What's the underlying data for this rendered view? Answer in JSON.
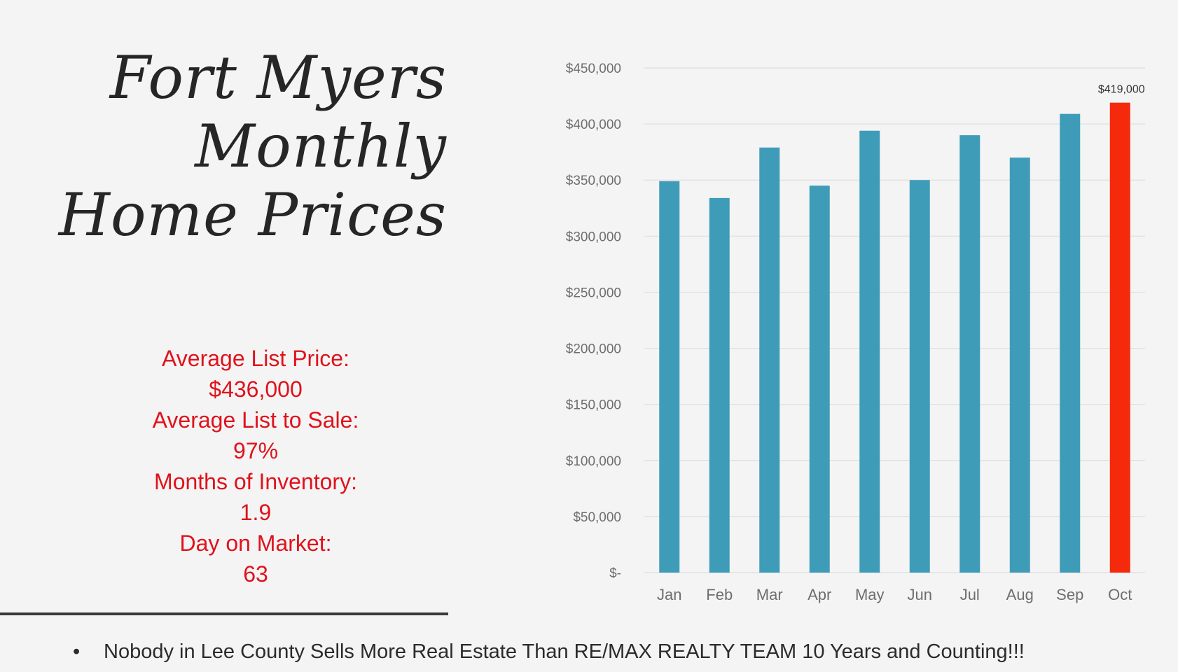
{
  "title_lines": [
    "Fort Myers",
    "Monthly",
    "Home Prices"
  ],
  "stats": [
    {
      "label": "Average List Price:",
      "value": "$436,000"
    },
    {
      "label": "Average List to Sale:",
      "value": "97%"
    },
    {
      "label": "Months of Inventory:",
      "value": "1.9"
    },
    {
      "label": "Day on Market:",
      "value": "63"
    }
  ],
  "footer": {
    "bullet": "•",
    "text": "Nobody in Lee County Sells More Real Estate Than RE/MAX REALTY  TEAM  10 Years and Counting!!!"
  },
  "colors": {
    "bar": "#3f9cb8",
    "highlight": "#f52a0c",
    "grid": "#dedede",
    "axis_text": "#6e6e6e",
    "stats_text": "#e0121c"
  },
  "chart_data": {
    "type": "bar",
    "categories": [
      "Jan",
      "Feb",
      "Mar",
      "Apr",
      "May",
      "Jun",
      "Jul",
      "Aug",
      "Sep",
      "Oct"
    ],
    "values": [
      349000,
      334000,
      379000,
      345000,
      394000,
      350000,
      390000,
      370000,
      409000,
      419000
    ],
    "highlight_index": 9,
    "data_labels": [
      {
        "index": 9,
        "text": "$419,000"
      }
    ],
    "ylim": [
      0,
      450000
    ],
    "yticks": [
      0,
      50000,
      100000,
      150000,
      200000,
      250000,
      300000,
      350000,
      400000,
      450000
    ],
    "ytick_labels": [
      "$-",
      "$50,000",
      "$100,000",
      "$150,000",
      "$200,000",
      "$250,000",
      "$300,000",
      "$350,000",
      "$400,000",
      "$450,000"
    ],
    "grid": true,
    "legend": "none"
  }
}
